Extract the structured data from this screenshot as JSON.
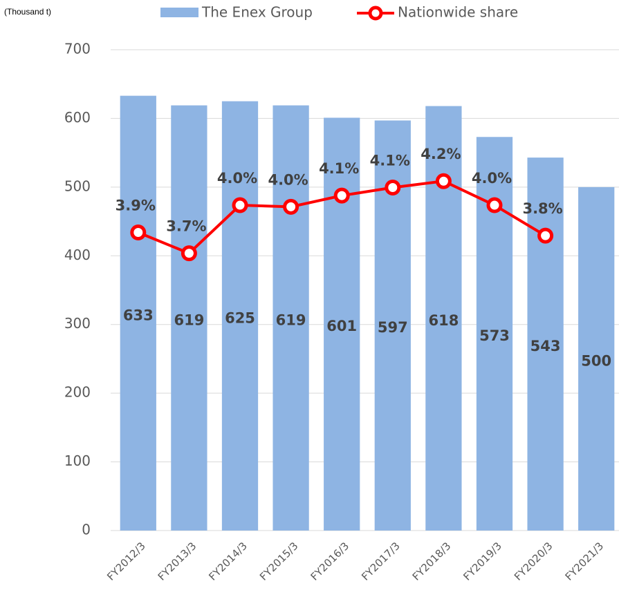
{
  "chart_data": {
    "type": "bar_line",
    "unit_label": "(Thousand t)",
    "categories": [
      "FY2012/3",
      "FY2013/3",
      "FY2014/3",
      "FY2015/3",
      "FY2016/3",
      "FY2017/3",
      "FY2018/3",
      "FY2019/3",
      "FY2020/3",
      "FY2021/3"
    ],
    "series": [
      {
        "name": "The Enex Group",
        "color": "#8eb4e3",
        "values": [
          633,
          619,
          625,
          619,
          601,
          597,
          618,
          573,
          543,
          500
        ]
      },
      {
        "name": "Nationwide share",
        "color": "#ff0000",
        "axis": "y2",
        "values": [
          3.86,
          3.73,
          4.03,
          4.02,
          4.09,
          4.14,
          4.18,
          4.03,
          3.84,
          null
        ],
        "value_labels": [
          "3.9%",
          "3.7%",
          "4.0%",
          "4.0%",
          "4.1%",
          "4.1%",
          "4.2%",
          "4.0%",
          "3.8%",
          null
        ]
      }
    ],
    "ylim": [
      0,
      700
    ],
    "yticks": [
      0,
      100,
      200,
      300,
      400,
      500,
      600,
      700
    ],
    "y2lim": [
      2,
      5
    ],
    "grid": true,
    "legend": "top"
  }
}
